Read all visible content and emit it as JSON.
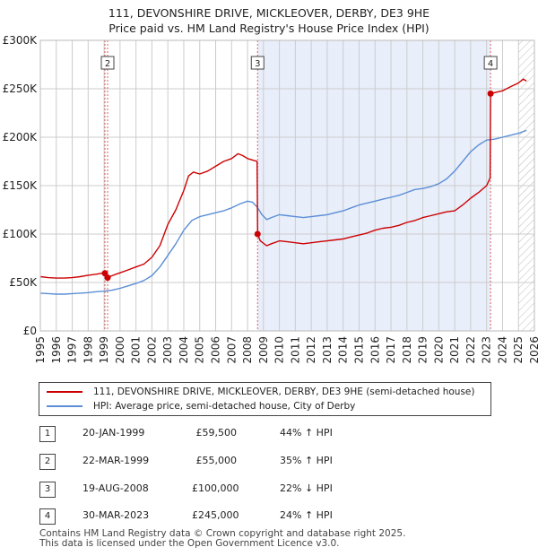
{
  "title": {
    "line1": "111, DEVONSHIRE DRIVE, MICKLEOVER, DERBY, DE3 9HE",
    "line2": "Price paid vs. HM Land Registry's House Price Index (HPI)"
  },
  "legend": {
    "property": "111, DEVONSHIRE DRIVE, MICKLEOVER, DERBY, DE3 9HE (semi-detached house)",
    "hpi": "HPI: Average price, semi-detached house, City of Derby"
  },
  "colors": {
    "property": "#cc0000",
    "hpi": "#5b8ed6",
    "shade": "#e8eefa",
    "hatch": "#bbbbbb",
    "vline": "#e06060",
    "grid": "#cccccc"
  },
  "transactions": [
    {
      "num": "1",
      "date": "20-JAN-1999",
      "price": "£59,500",
      "hpi_change": "44% ↑ HPI"
    },
    {
      "num": "2",
      "date": "22-MAR-1999",
      "price": "£55,000",
      "hpi_change": "35% ↑ HPI"
    },
    {
      "num": "3",
      "date": "19-AUG-2008",
      "price": "£100,000",
      "hpi_change": "22% ↓ HPI"
    },
    {
      "num": "4",
      "date": "30-MAR-2023",
      "price": "£245,000",
      "hpi_change": "24% ↑ HPI"
    }
  ],
  "footer": {
    "line1": "Contains HM Land Registry data © Crown copyright and database right 2025.",
    "line2": "This data is licensed under the Open Government Licence v3.0."
  },
  "chart_data": {
    "type": "line",
    "xlim": [
      1995,
      2026
    ],
    "ylim": [
      0,
      300000
    ],
    "y_ticks": [
      {
        "value": 0,
        "label": "£0"
      },
      {
        "value": 50000,
        "label": "£50K"
      },
      {
        "value": 100000,
        "label": "£100K"
      },
      {
        "value": 150000,
        "label": "£150K"
      },
      {
        "value": 200000,
        "label": "£200K"
      },
      {
        "value": 250000,
        "label": "£250K"
      },
      {
        "value": 300000,
        "label": "£300K"
      }
    ],
    "x_ticks": [
      "1995",
      "1996",
      "1997",
      "1998",
      "1999",
      "2000",
      "2001",
      "2002",
      "2003",
      "2004",
      "2005",
      "2006",
      "2007",
      "2008",
      "2009",
      "2010",
      "2011",
      "2012",
      "2013",
      "2014",
      "2015",
      "2016",
      "2017",
      "2018",
      "2019",
      "2020",
      "2021",
      "2022",
      "2023",
      "2024",
      "2025",
      "2026"
    ],
    "shaded_span": [
      2008.63,
      2023.25
    ],
    "future_from": 2025.0,
    "markers": [
      {
        "label": "2",
        "x": 1999.22
      },
      {
        "label": "3",
        "x": 2008.63
      },
      {
        "label": "4",
        "x": 2023.25
      }
    ],
    "sale_points": [
      {
        "x": 1999.05,
        "y": 59500
      },
      {
        "x": 1999.22,
        "y": 55000
      },
      {
        "x": 2008.63,
        "y": 100000
      },
      {
        "x": 2023.25,
        "y": 245000
      }
    ],
    "series": [
      {
        "name": "111, DEVONSHIRE DRIVE, MICKLEOVER, DERBY, DE3 9HE (semi-detached house)",
        "x": [
          1995,
          1995.5,
          1996,
          1996.5,
          1997,
          1997.5,
          1998,
          1998.5,
          1999.0,
          1999.05,
          1999.22,
          1999.5,
          2000,
          2000.5,
          2001,
          2001.5,
          2002,
          2002.5,
          2003,
          2003.5,
          2004,
          2004.3,
          2004.6,
          2005,
          2005.5,
          2006,
          2006.5,
          2007,
          2007.4,
          2007.7,
          2008,
          2008.4,
          2008.6,
          2008.63,
          2008.8,
          2009.2,
          2009.5,
          2010,
          2010.5,
          2011,
          2011.5,
          2012,
          2012.5,
          2013,
          2013.5,
          2014,
          2014.5,
          2015,
          2015.5,
          2016,
          2016.5,
          2017,
          2017.5,
          2018,
          2018.5,
          2019,
          2019.5,
          2020,
          2020.5,
          2021,
          2021.5,
          2022,
          2022.5,
          2023.0,
          2023.22,
          2023.25,
          2023.5,
          2024,
          2024.5,
          2025,
          2025.3,
          2025.5
        ],
        "values": [
          56000,
          55000,
          54500,
          54500,
          55000,
          56000,
          57500,
          58500,
          60000,
          59500,
          55000,
          57000,
          60000,
          63000,
          66000,
          69000,
          76000,
          88000,
          110000,
          125000,
          145000,
          160000,
          164000,
          162000,
          165000,
          170000,
          175000,
          178000,
          183000,
          181000,
          178000,
          176000,
          175000,
          100000,
          93000,
          88000,
          90000,
          93000,
          92000,
          91000,
          90000,
          91000,
          92000,
          93000,
          94000,
          95000,
          97000,
          99000,
          101000,
          104000,
          106000,
          107000,
          109000,
          112000,
          114000,
          117000,
          119000,
          121000,
          123000,
          124000,
          130000,
          137000,
          143000,
          150000,
          158000,
          245000,
          246000,
          248000,
          252000,
          256000,
          260000,
          258000
        ]
      },
      {
        "name": "HPI: Average price, semi-detached house, City of Derby",
        "x": [
          1995,
          1995.5,
          1996,
          1996.5,
          1997,
          1997.5,
          1998,
          1998.5,
          1999,
          1999.5,
          2000,
          2000.5,
          2001,
          2001.5,
          2002,
          2002.5,
          2003,
          2003.5,
          2004,
          2004.5,
          2005,
          2005.5,
          2006,
          2006.5,
          2007,
          2007.5,
          2008,
          2008.3,
          2008.6,
          2008.9,
          2009.2,
          2009.5,
          2010,
          2010.5,
          2011,
          2011.5,
          2012,
          2012.5,
          2013,
          2013.5,
          2014,
          2014.5,
          2015,
          2015.5,
          2016,
          2016.5,
          2017,
          2017.5,
          2018,
          2018.5,
          2019,
          2019.5,
          2020,
          2020.5,
          2021,
          2021.5,
          2022,
          2022.5,
          2023,
          2023.5,
          2024,
          2024.5,
          2025,
          2025.5
        ],
        "values": [
          39000,
          38500,
          38000,
          38000,
          38500,
          39000,
          39500,
          40500,
          41000,
          42000,
          44000,
          46500,
          49000,
          52000,
          57000,
          66000,
          78000,
          90000,
          104000,
          114000,
          118000,
          120000,
          122000,
          124000,
          127000,
          131000,
          134000,
          133000,
          128000,
          120000,
          115000,
          117000,
          120000,
          119000,
          118000,
          117000,
          118000,
          119000,
          120000,
          122000,
          124000,
          127000,
          130000,
          132000,
          134000,
          136000,
          138000,
          140000,
          143000,
          146000,
          147000,
          149000,
          152000,
          157000,
          165000,
          175000,
          185000,
          192000,
          197000,
          198000,
          200000,
          202000,
          204000,
          207000
        ]
      }
    ]
  }
}
